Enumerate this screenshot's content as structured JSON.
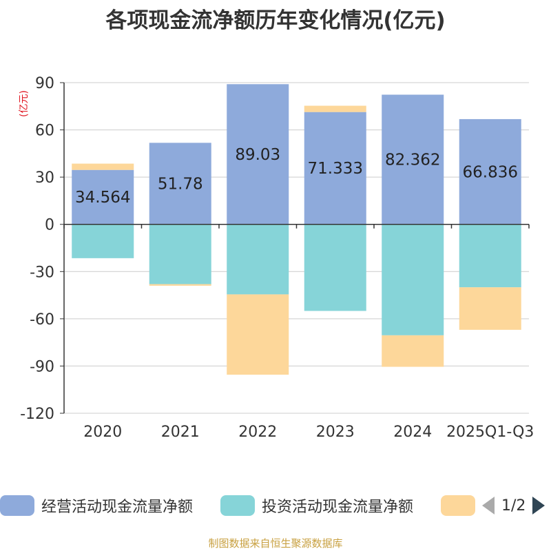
{
  "chart_data": {
    "type": "bar",
    "title": "各项现金流净额历年变化情况(亿元)",
    "ylabel": "(亿元)",
    "xlabel": "",
    "ylim": [
      -120,
      90
    ],
    "yticks": [
      90,
      60,
      30,
      0,
      -30,
      -60,
      -90,
      -120
    ],
    "categories": [
      "2020",
      "2021",
      "2022",
      "2023",
      "2024",
      "2025Q1-Q3"
    ],
    "stacked": true,
    "series": [
      {
        "name": "经营活动现金流量净额",
        "color": "#8eaadb",
        "values": [
          34.564,
          51.78,
          89.03,
          71.333,
          82.362,
          66.836
        ],
        "show_labels": true
      },
      {
        "name": "投资活动现金流量净额",
        "color": "#86d4d8",
        "values": [
          -21.5,
          -38,
          -44.5,
          -55,
          -70.5,
          -40
        ],
        "show_labels": false
      },
      {
        "name": "",
        "color": "#fdd79a",
        "values": [
          4,
          -1,
          -51,
          4,
          -20,
          -27
        ],
        "show_labels": false
      }
    ],
    "grid": true
  },
  "legend": {
    "items": [
      {
        "label": "经营活动现金流量净额",
        "color": "#8eaadb"
      },
      {
        "label": "投资活动现金流量净额",
        "color": "#86d4d8"
      },
      {
        "label": "",
        "color": "#fdd79a"
      }
    ],
    "page": "1/2"
  },
  "source": "制图数据来自恒生聚源数据库"
}
